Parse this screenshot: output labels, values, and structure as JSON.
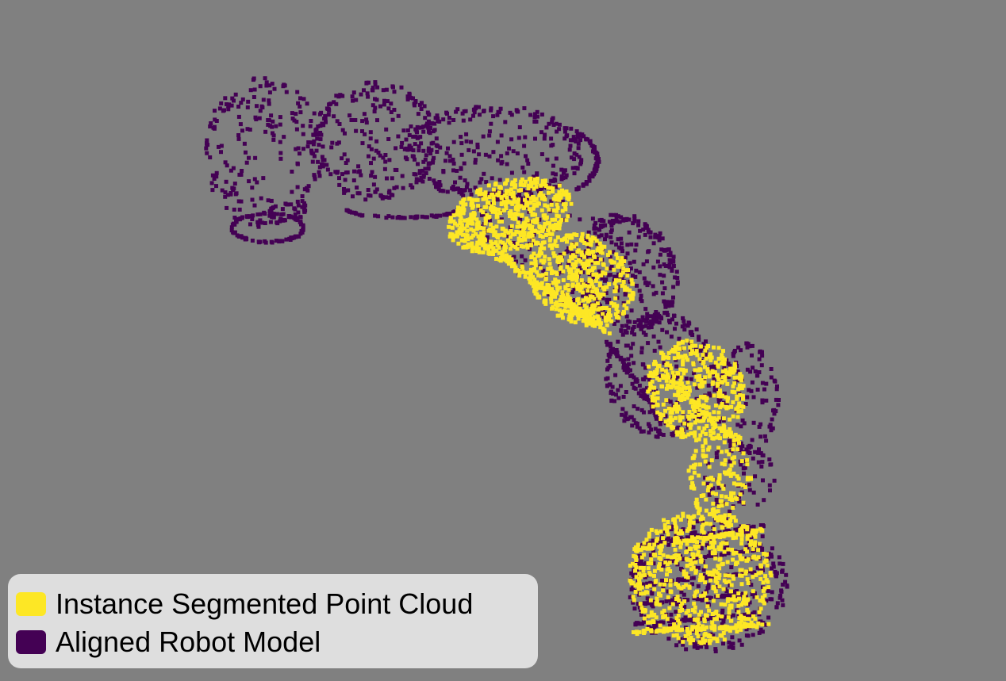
{
  "scene": {
    "background": "#808080",
    "point_colors": {
      "segmented": "#fde725",
      "model": "#440154"
    }
  },
  "legend": {
    "background": "#dedede",
    "items": [
      {
        "label": "Instance Segmented Point Cloud",
        "color": "#fde725"
      },
      {
        "label": "Aligned Robot Model",
        "color": "#440154"
      }
    ]
  }
}
